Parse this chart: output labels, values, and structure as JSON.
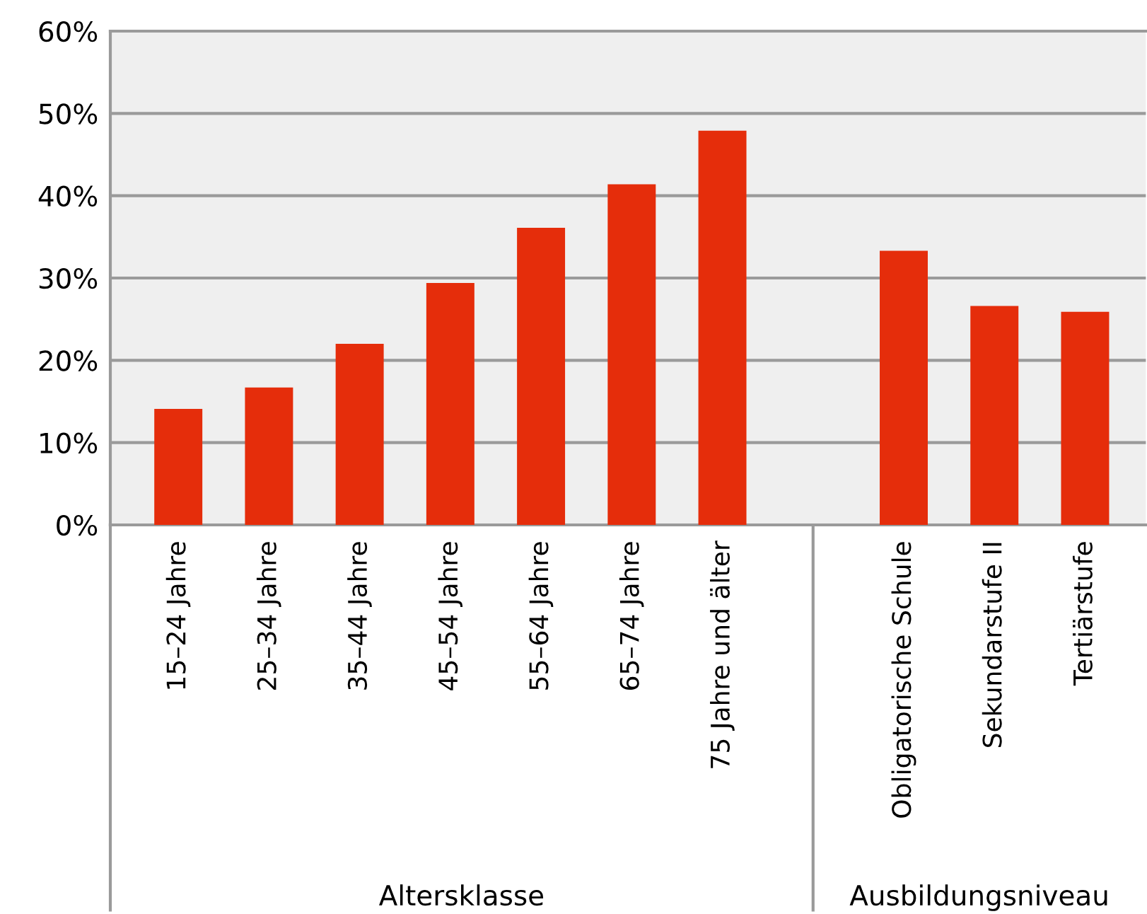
{
  "chart_data": {
    "type": "bar",
    "categories": [
      "15–24 Jahre",
      "25–34 Jahre",
      "35–44 Jahre",
      "45–54 Jahre",
      "55–64 Jahre",
      "65–74 Jahre",
      "75 Jahre und älter",
      null,
      "Obligatorische Schule",
      "Sekundarstufe II",
      "Tertiärstufe"
    ],
    "values": [
      14.1,
      16.7,
      22.0,
      29.4,
      36.1,
      41.4,
      47.9,
      null,
      33.3,
      26.6,
      25.9
    ],
    "color": "#e52d0b",
    "ylim": [
      0,
      60
    ],
    "yticks": [
      {
        "value": 0,
        "label": "0%"
      },
      {
        "value": 10,
        "label": "10%"
      },
      {
        "value": 20,
        "label": "20%"
      },
      {
        "value": 30,
        "label": "30%"
      },
      {
        "value": 40,
        "label": "40%"
      },
      {
        "value": 50,
        "label": "50%"
      },
      {
        "value": 60,
        "label": "60%"
      }
    ],
    "grid": "y",
    "annotations": [
      "Altersklasse",
      "Ausbildungsniveau"
    ]
  }
}
